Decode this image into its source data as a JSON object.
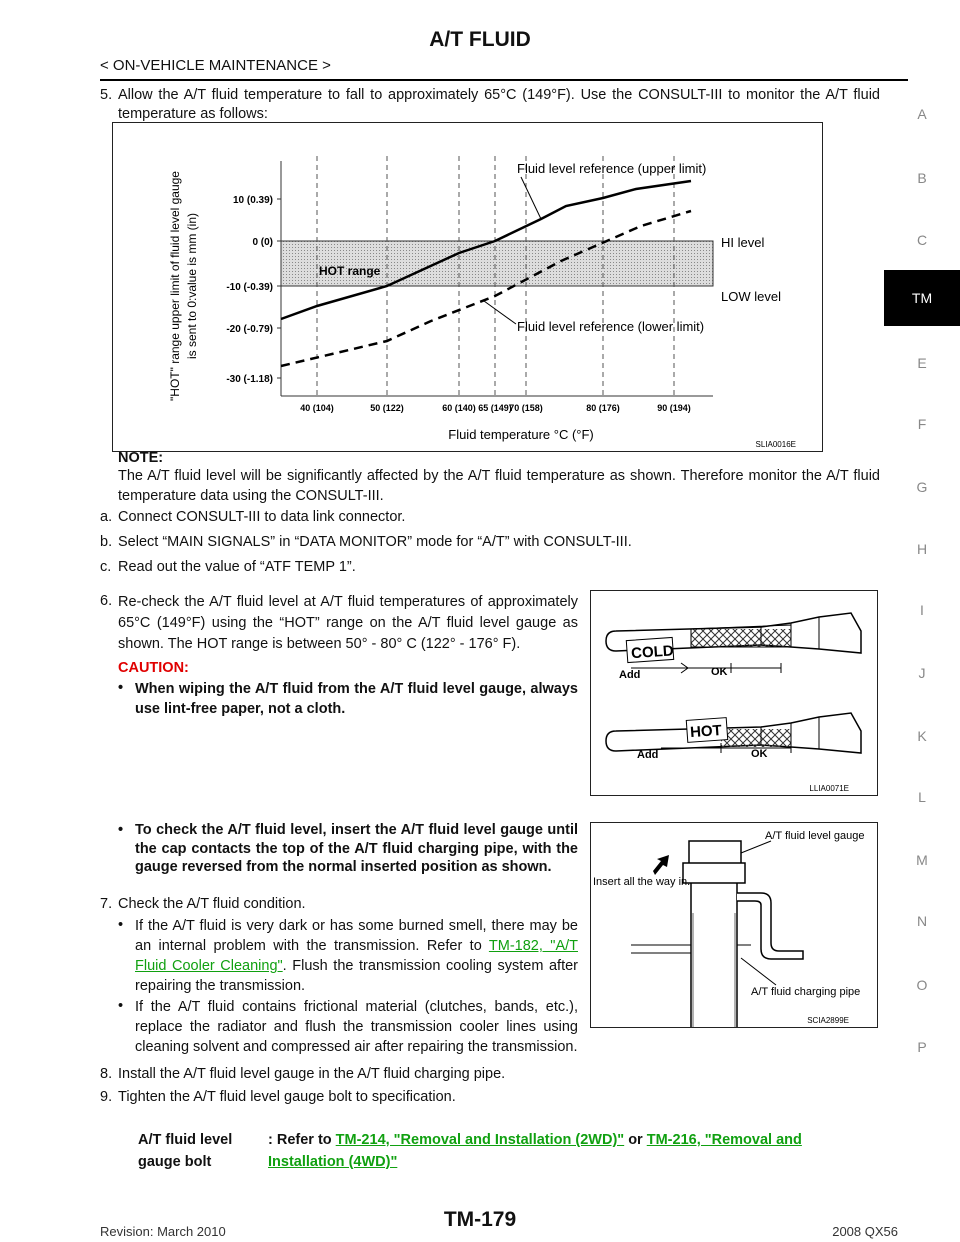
{
  "header": {
    "title": "A/T FLUID",
    "subtitle": "< ON-VEHICLE MAINTENANCE >"
  },
  "side_index": {
    "letters": [
      "A",
      "B",
      "C",
      "TM",
      "E",
      "F",
      "G",
      "H",
      "I",
      "J",
      "K",
      "L",
      "M",
      "N",
      "O",
      "P"
    ],
    "active": 3
  },
  "step5": {
    "number": "5.",
    "text": "Allow the A/T fluid temperature to fall to approximately 65°C (149°F). Use the CONSULT-III to monitor the A/T fluid temperature as follows:"
  },
  "figure1": {
    "y_axis_label": [
      "\"HOT\" range upper limit of fluid level gauge",
      "is sent to 0:value is mm (in)"
    ],
    "yticks": [
      "10 (0.39)",
      "0 (0)",
      "-10 (-0.39)",
      "-20 (-0.79)",
      "-30 (-1.18)"
    ],
    "xticks": [
      "40 (104)",
      "50 (122)",
      "60 (140)",
      "65 (149)",
      "70 (158)",
      "80 (176)",
      "90 (194)"
    ],
    "x_axis_label": "Fluid temperature °C (°F)",
    "hot_range": "HOT range",
    "hi_level": "HI level",
    "low_level": "LOW level",
    "upper_label": "Fluid level reference (upper limit)",
    "lower_label": "Fluid level reference (lower limit)",
    "code": "SLIA0016E"
  },
  "note": {
    "label": "NOTE:",
    "text": "The A/T fluid level will be significantly affected by the A/T fluid temperature as shown. Therefore monitor the A/T fluid temperature data using the CONSULT-III."
  },
  "substeps": [
    {
      "label": "a.",
      "text": "Connect CONSULT-III to data link connector."
    },
    {
      "label": "b.",
      "text": "Select “MAIN SIGNALS” in “DATA MONITOR” mode for “A/T” with CONSULT-III."
    },
    {
      "label": "c.",
      "text": "Read out the value of “ATF TEMP 1”."
    }
  ],
  "step6": {
    "number": "6.",
    "text": "Re-check the A/T fluid level at A/T fluid temperatures of approximately 65°C (149°F) using the “HOT” range on the A/T fluid level gauge as shown. The HOT range is between 50° - 80° C (122° - 176° F).",
    "caution_label": "CAUTION:",
    "caution": "When wiping the A/T fluid from the A/T fluid level gauge, always use lint-free paper, not a cloth.",
    "bullet": "To check the A/T fluid level, insert the A/T fluid level gauge until the cap contacts the top of the A/T fluid charging pipe, with the gauge reversed from the normal inserted position as shown."
  },
  "figure2": {
    "cold": "COLD",
    "cold_add": "Add",
    "cold_ok": "OK",
    "hot": "HOT",
    "hot_add": "Add",
    "hot_ok": "OK",
    "code": "LLIA0071E"
  },
  "figure3": {
    "gauge": "A/T fluid level gauge",
    "insert": "Insert all the way in.",
    "pipe": "A/T fluid charging pipe",
    "code": "SCIA2899E"
  },
  "step7": {
    "number": "7.",
    "text": "Check the A/T fluid condition.",
    "bullet1_pre": "If the A/T fluid is very dark or has some burned smell, there may be an internal problem with the transmission. Refer to ",
    "bullet1_link": "TM-182, \"A/T Fluid Cooler Cleaning\"",
    "bullet1_post": ". Flush the transmission cooling system after repairing the transmission.",
    "bullet2": "If the A/T fluid contains frictional material (clutches, bands, etc.), replace the radiator and flush the transmission cooler lines using cleaning solvent and compressed air after repairing the transmission."
  },
  "step8": {
    "number": "8.",
    "text": "Install the A/T fluid level gauge in the A/T fluid charging pipe."
  },
  "step9": {
    "number": "9.",
    "text": "Tighten the A/T fluid level gauge bolt to specification."
  },
  "spec": {
    "label": "A/T fluid level gauge bolt",
    "pre": ": Refer to ",
    "link1": "TM-214, \"Removal and Installation (2WD)\"",
    "mid": " or ",
    "link2": "TM-216, \"Removal and Installation (4WD)\""
  },
  "footer": {
    "revision": "Revision: March 2010",
    "page": "TM-179",
    "model": "2008 QX56"
  }
}
